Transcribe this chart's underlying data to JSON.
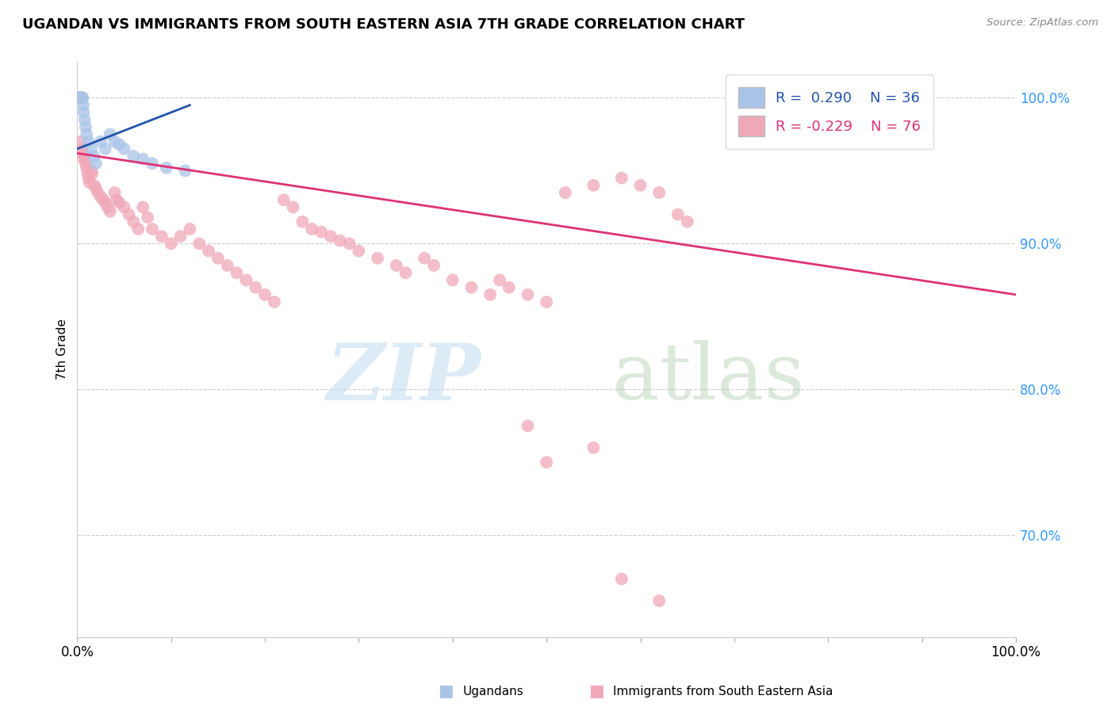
{
  "title": "UGANDAN VS IMMIGRANTS FROM SOUTH EASTERN ASIA 7TH GRADE CORRELATION CHART",
  "source": "Source: ZipAtlas.com",
  "ylabel": "7th Grade",
  "r_ugandan": 0.29,
  "n_ugandan": 36,
  "r_sea": -0.229,
  "n_sea": 76,
  "ugandan_color": "#aac4e8",
  "sea_color": "#f0a8b8",
  "trend_ugandan_color": "#2255aa",
  "trend_sea_color": "#dd3377",
  "yticks": [
    100.0,
    90.0,
    80.0,
    70.0
  ],
  "xlim": [
    0.0,
    100.0
  ],
  "ylim": [
    63.0,
    102.5
  ],
  "ug_trend_x0": 0.0,
  "ug_trend_y0": 96.5,
  "ug_trend_x1": 12.0,
  "ug_trend_y1": 99.5,
  "sea_trend_x0": 0.0,
  "sea_trend_y0": 96.2,
  "sea_trend_x1": 100.0,
  "sea_trend_y1": 86.5,
  "sea_x": [
    0.4,
    0.5,
    0.6,
    0.7,
    0.8,
    0.9,
    1.0,
    1.1,
    1.2,
    1.3,
    1.5,
    1.6,
    1.8,
    2.0,
    2.2,
    2.5,
    2.8,
    3.0,
    3.2,
    3.5,
    4.0,
    4.2,
    4.5,
    5.0,
    5.5,
    6.0,
    6.5,
    7.0,
    7.5,
    8.0,
    9.0,
    10.0,
    11.0,
    12.0,
    13.0,
    14.0,
    15.0,
    16.0,
    17.0,
    18.0,
    19.0,
    20.0,
    21.0,
    22.0,
    23.0,
    24.0,
    25.0,
    26.0,
    27.0,
    28.0,
    29.0,
    30.0,
    32.0,
    34.0,
    35.0,
    37.0,
    38.0,
    40.0,
    42.0,
    44.0,
    45.0,
    46.0,
    48.0,
    50.0,
    52.0,
    55.0,
    58.0,
    60.0,
    62.0,
    64.0,
    65.0,
    48.0,
    50.0,
    55.0,
    58.0,
    62.0
  ],
  "sea_y": [
    97.0,
    96.5,
    96.2,
    95.8,
    96.0,
    95.5,
    95.2,
    94.8,
    94.5,
    94.2,
    95.0,
    94.8,
    94.0,
    93.8,
    93.5,
    93.2,
    93.0,
    92.8,
    92.5,
    92.2,
    93.5,
    93.0,
    92.8,
    92.5,
    92.0,
    91.5,
    91.0,
    92.5,
    91.8,
    91.0,
    90.5,
    90.0,
    90.5,
    91.0,
    90.0,
    89.5,
    89.0,
    88.5,
    88.0,
    87.5,
    87.0,
    86.5,
    86.0,
    93.0,
    92.5,
    91.5,
    91.0,
    90.8,
    90.5,
    90.2,
    90.0,
    89.5,
    89.0,
    88.5,
    88.0,
    89.0,
    88.5,
    87.5,
    87.0,
    86.5,
    87.5,
    87.0,
    86.5,
    86.0,
    93.5,
    94.0,
    94.5,
    94.0,
    93.5,
    92.0,
    91.5,
    77.5,
    75.0,
    76.0,
    67.0,
    65.5
  ],
  "ug_x": [
    0.15,
    0.18,
    0.2,
    0.22,
    0.25,
    0.28,
    0.3,
    0.32,
    0.35,
    0.38,
    0.4,
    0.42,
    0.45,
    0.5,
    0.55,
    0.6,
    0.65,
    0.7,
    0.8,
    0.9,
    1.0,
    1.2,
    1.5,
    1.8,
    2.0,
    2.5,
    3.0,
    3.5,
    4.0,
    4.5,
    5.0,
    6.0,
    7.0,
    8.0,
    9.5,
    11.5
  ],
  "ug_y": [
    100.0,
    100.0,
    100.0,
    100.0,
    100.0,
    100.0,
    100.0,
    100.0,
    100.0,
    100.0,
    100.0,
    100.0,
    100.0,
    100.0,
    100.0,
    100.0,
    99.5,
    99.0,
    98.5,
    98.0,
    97.5,
    97.0,
    96.5,
    96.0,
    95.5,
    97.0,
    96.5,
    97.5,
    97.0,
    96.8,
    96.5,
    96.0,
    95.8,
    95.5,
    95.2,
    95.0
  ]
}
